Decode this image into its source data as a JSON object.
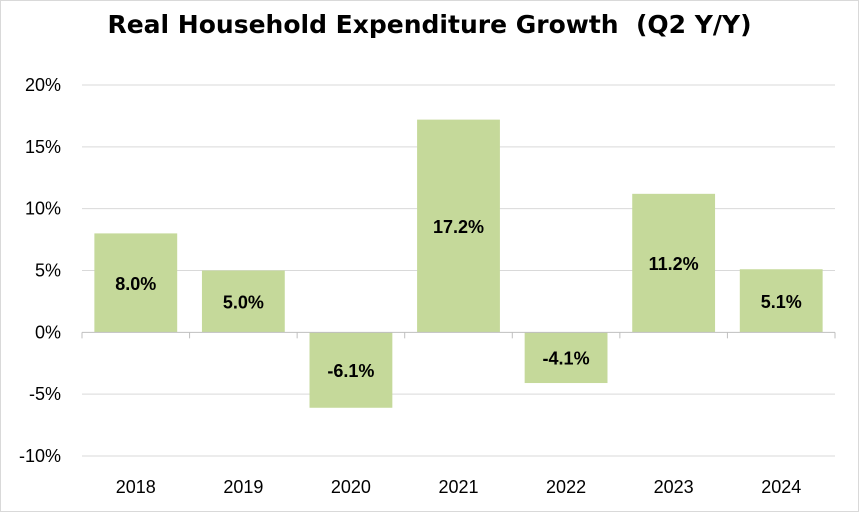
{
  "chart_data": {
    "type": "bar",
    "title": "Real Household Expenditure Growth  (Q2 Y/Y)",
    "categories": [
      "2018",
      "2019",
      "2020",
      "2021",
      "2022",
      "2023",
      "2024"
    ],
    "series": [
      {
        "values": [
          8.0,
          5.0,
          -6.1,
          17.2,
          -4.1,
          11.2,
          5.1
        ]
      }
    ],
    "data_labels": [
      "8.0%",
      "5.0%",
      "-6.1%",
      "17.2%",
      "-4.1%",
      "11.2%",
      "5.1%"
    ],
    "y_ticks": [
      20,
      15,
      10,
      5,
      0,
      -5,
      -10
    ],
    "y_tick_labels": [
      "20%",
      "15%",
      "10%",
      "5%",
      "0%",
      "-5%",
      "-10%"
    ],
    "ylim": [
      -10,
      20
    ],
    "grid": true,
    "legend": "none",
    "colors": {
      "bar": "#c5d99a",
      "grid": "#d9d9d9",
      "axis": "#bfbfbf"
    }
  }
}
